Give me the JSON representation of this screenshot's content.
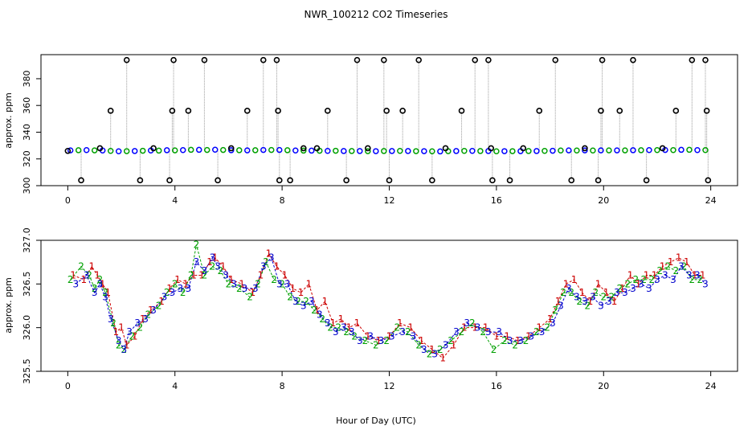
{
  "chart_data": [
    {
      "type": "scatter",
      "title": "NWR_100212  CO2 Timeseries",
      "xlabel": "",
      "ylabel": "approx. ppm",
      "xlim": [
        -1,
        25
      ],
      "ylim": [
        300,
        398
      ],
      "xticks": [
        0,
        4,
        8,
        12,
        16,
        20,
        24
      ],
      "yticks": [
        300,
        320,
        340,
        360,
        380
      ],
      "x_tick_labels": [
        "0",
        "4",
        "8",
        "12",
        "16",
        "20",
        "24"
      ],
      "y_tick_labels": [
        "300",
        "320",
        "340",
        "360",
        "380"
      ],
      "baseline_series": [
        {
          "name": "blue",
          "color": "#0000ff",
          "x": [
            0.1,
            0.7,
            1.3,
            1.9,
            2.5,
            3.1,
            3.7,
            4.3,
            4.9,
            5.5,
            6.1,
            6.7,
            7.3,
            7.9,
            8.5,
            9.1,
            9.7,
            10.3,
            10.9,
            11.5,
            12.1,
            12.7,
            13.3,
            13.9,
            14.5,
            15.1,
            15.7,
            16.3,
            16.9,
            17.5,
            18.1,
            18.7,
            19.3,
            19.9,
            20.5,
            21.1,
            21.7,
            22.3,
            22.9,
            23.5
          ],
          "y": [
            326.4,
            326.6,
            326.3,
            325.7,
            325.9,
            326.3,
            326.5,
            326.6,
            326.8,
            326.9,
            326.5,
            326.4,
            326.7,
            326.7,
            326.3,
            326.2,
            326.0,
            325.9,
            325.9,
            325.8,
            325.9,
            325.9,
            325.8,
            325.6,
            325.9,
            326.0,
            325.9,
            325.8,
            325.8,
            325.9,
            326.1,
            326.4,
            326.4,
            326.4,
            326.4,
            326.5,
            326.6,
            326.7,
            326.8,
            326.6
          ]
        },
        {
          "name": "green",
          "color": "#00a000",
          "x": [
            0.4,
            1.0,
            1.6,
            2.2,
            2.8,
            3.4,
            4.0,
            4.6,
            5.2,
            5.8,
            6.4,
            7.0,
            7.6,
            8.2,
            8.8,
            9.4,
            10.0,
            10.6,
            11.2,
            11.8,
            12.4,
            13.0,
            13.6,
            14.2,
            14.8,
            15.4,
            16.0,
            16.6,
            17.2,
            17.8,
            18.4,
            19.0,
            19.6,
            20.2,
            20.8,
            21.4,
            22.0,
            22.6,
            23.2,
            23.8
          ],
          "y": [
            326.5,
            326.4,
            326.0,
            325.8,
            326.1,
            326.2,
            326.4,
            326.8,
            326.7,
            326.7,
            326.5,
            326.5,
            326.7,
            326.5,
            326.2,
            326.1,
            326.1,
            325.9,
            325.8,
            325.9,
            326.0,
            325.8,
            325.7,
            325.8,
            326.0,
            325.9,
            325.7,
            325.8,
            325.9,
            326.0,
            326.3,
            326.3,
            326.3,
            326.4,
            326.4,
            326.5,
            326.6,
            326.6,
            326.8,
            326.6
          ]
        }
      ],
      "spike_points": {
        "color": "#000000",
        "x": [
          0.0,
          0.5,
          1.2,
          1.6,
          2.2,
          2.7,
          3.2,
          3.8,
          3.9,
          3.95,
          4.5,
          5.1,
          5.6,
          6.1,
          6.7,
          7.3,
          7.8,
          7.85,
          7.9,
          8.3,
          8.8,
          9.3,
          9.7,
          10.4,
          10.8,
          11.2,
          11.8,
          11.9,
          12.0,
          12.5,
          13.1,
          13.6,
          14.1,
          14.7,
          15.2,
          15.7,
          15.8,
          15.85,
          16.5,
          17.0,
          17.6,
          18.2,
          18.8,
          19.3,
          19.8,
          19.9,
          19.95,
          20.6,
          21.1,
          21.6,
          22.2,
          22.7,
          23.3,
          23.8,
          23.85,
          23.9
        ],
        "y": [
          326,
          304,
          328,
          356,
          394,
          304,
          328,
          304,
          356,
          394,
          356,
          394,
          304,
          328,
          356,
          394,
          394,
          356,
          304,
          304,
          328,
          328,
          356,
          304,
          394,
          328,
          394,
          356,
          304,
          356,
          394,
          304,
          328,
          356,
          394,
          394,
          328,
          304,
          304,
          328,
          356,
          394,
          304,
          328,
          304,
          356,
          394,
          356,
          394,
          304,
          328,
          356,
          394,
          394,
          356,
          304
        ]
      }
    },
    {
      "type": "line",
      "title": "",
      "xlabel": "Hour of Day (UTC)",
      "ylabel": "approx. ppm",
      "xlim": [
        -1,
        25
      ],
      "ylim": [
        325.5,
        327.0
      ],
      "xticks": [
        0,
        4,
        8,
        12,
        16,
        20,
        24
      ],
      "yticks": [
        325.5,
        326.0,
        326.5,
        327.0
      ],
      "x_tick_labels": [
        "0",
        "4",
        "8",
        "12",
        "16",
        "20",
        "24"
      ],
      "y_tick_labels": [
        "325.5",
        "326.0",
        "326.5",
        "327.0"
      ],
      "series": [
        {
          "name": "1",
          "color": "#cc0000",
          "x": [
            0.2,
            0.6,
            0.9,
            1.1,
            1.3,
            1.5,
            1.8,
            2.0,
            2.2,
            2.5,
            2.8,
            3.1,
            3.5,
            3.8,
            4.1,
            4.4,
            4.7,
            5.0,
            5.3,
            5.5,
            5.8,
            6.1,
            6.5,
            6.9,
            7.2,
            7.5,
            7.8,
            8.1,
            8.4,
            8.7,
            9.0,
            9.3,
            9.6,
            9.9,
            10.2,
            10.5,
            10.8,
            11.2,
            11.6,
            12.0,
            12.4,
            12.8,
            13.2,
            13.6,
            14.0,
            14.4,
            14.8,
            15.2,
            15.6,
            16.0,
            16.4,
            16.8,
            17.2,
            17.6,
            18.0,
            18.3,
            18.6,
            18.9,
            19.2,
            19.5,
            19.8,
            20.1,
            20.4,
            20.7,
            21.0,
            21.3,
            21.6,
            21.9,
            22.2,
            22.5,
            22.8,
            23.1,
            23.4,
            23.7
          ],
          "y": [
            326.6,
            326.55,
            326.7,
            326.6,
            326.5,
            326.4,
            325.95,
            326.0,
            325.8,
            325.9,
            326.1,
            326.2,
            326.3,
            326.45,
            326.55,
            326.5,
            326.6,
            326.6,
            326.75,
            326.8,
            326.7,
            326.55,
            326.5,
            326.4,
            326.6,
            326.85,
            326.7,
            326.6,
            326.45,
            326.4,
            326.5,
            326.2,
            326.3,
            326.05,
            326.1,
            326.0,
            326.05,
            325.9,
            325.85,
            325.9,
            326.05,
            326.0,
            325.85,
            325.75,
            325.65,
            325.8,
            326.0,
            326.0,
            326.0,
            325.9,
            325.9,
            325.85,
            325.9,
            326.0,
            326.1,
            326.3,
            326.5,
            326.55,
            326.4,
            326.3,
            326.5,
            326.4,
            326.3,
            326.45,
            326.6,
            326.5,
            326.6,
            326.6,
            326.7,
            326.75,
            326.8,
            326.75,
            326.6,
            326.6
          ]
        },
        {
          "name": "2",
          "color": "#00a000",
          "x": [
            0.1,
            0.5,
            0.8,
            1.0,
            1.2,
            1.4,
            1.7,
            1.9,
            2.1,
            2.4,
            2.7,
            3.0,
            3.4,
            3.7,
            4.0,
            4.3,
            4.6,
            4.8,
            5.1,
            5.4,
            5.7,
            6.0,
            6.4,
            6.8,
            7.1,
            7.4,
            7.7,
            8.0,
            8.3,
            8.6,
            8.9,
            9.2,
            9.5,
            9.8,
            10.1,
            10.4,
            10.7,
            11.1,
            11.5,
            11.9,
            12.3,
            12.7,
            13.1,
            13.5,
            13.9,
            14.3,
            14.7,
            15.1,
            15.5,
            15.9,
            16.3,
            16.7,
            17.1,
            17.5,
            17.9,
            18.2,
            18.5,
            18.8,
            19.1,
            19.4,
            19.7,
            20.0,
            20.3,
            20.6,
            20.9,
            21.2,
            21.5,
            21.8,
            22.1,
            22.4,
            22.7,
            23.0,
            23.3,
            23.6
          ],
          "y": [
            326.55,
            326.7,
            326.6,
            326.45,
            326.55,
            326.4,
            326.05,
            325.8,
            325.75,
            325.9,
            326.0,
            326.15,
            326.25,
            326.4,
            326.5,
            326.4,
            326.6,
            326.95,
            326.6,
            326.7,
            326.65,
            326.5,
            326.45,
            326.35,
            326.5,
            326.75,
            326.55,
            326.5,
            326.35,
            326.3,
            326.3,
            326.2,
            326.1,
            326.0,
            326.0,
            325.95,
            325.9,
            325.85,
            325.8,
            325.85,
            326.0,
            325.95,
            325.8,
            325.7,
            325.75,
            325.85,
            325.95,
            326.05,
            325.95,
            325.75,
            325.85,
            325.8,
            325.85,
            325.95,
            326.0,
            326.2,
            326.4,
            326.4,
            326.3,
            326.25,
            326.4,
            326.35,
            326.35,
            326.45,
            326.5,
            326.55,
            326.55,
            326.55,
            326.65,
            326.7,
            326.65,
            326.7,
            326.55,
            326.55
          ]
        },
        {
          "name": "3",
          "color": "#0000cc",
          "x": [
            0.3,
            0.7,
            1.0,
            1.2,
            1.4,
            1.6,
            1.9,
            2.1,
            2.3,
            2.6,
            2.9,
            3.2,
            3.6,
            3.9,
            4.2,
            4.5,
            4.8,
            5.1,
            5.4,
            5.6,
            5.9,
            6.2,
            6.6,
            7.0,
            7.3,
            7.6,
            7.9,
            8.2,
            8.5,
            8.8,
            9.1,
            9.4,
            9.7,
            10.0,
            10.3,
            10.6,
            10.9,
            11.3,
            11.7,
            12.1,
            12.5,
            12.9,
            13.3,
            13.7,
            14.1,
            14.5,
            14.9,
            15.3,
            15.7,
            16.1,
            16.5,
            16.9,
            17.3,
            17.7,
            18.1,
            18.4,
            18.7,
            19.0,
            19.3,
            19.6,
            19.9,
            20.2,
            20.5,
            20.8,
            21.1,
            21.4,
            21.7,
            22.0,
            22.3,
            22.6,
            22.9,
            23.2,
            23.5,
            23.8
          ],
          "y": [
            326.5,
            326.6,
            326.4,
            326.5,
            326.35,
            326.1,
            325.85,
            325.75,
            325.95,
            326.05,
            326.1,
            326.2,
            326.35,
            326.4,
            326.45,
            326.45,
            326.75,
            326.65,
            326.8,
            326.7,
            326.6,
            326.5,
            326.45,
            326.45,
            326.7,
            326.8,
            326.5,
            326.5,
            326.3,
            326.25,
            326.3,
            326.15,
            326.05,
            325.95,
            326.0,
            325.95,
            325.85,
            325.9,
            325.85,
            325.9,
            325.95,
            325.9,
            325.75,
            325.7,
            325.8,
            325.95,
            326.05,
            326.0,
            325.95,
            325.95,
            325.85,
            325.85,
            325.9,
            325.95,
            326.05,
            326.25,
            326.45,
            326.35,
            326.3,
            326.35,
            326.25,
            326.3,
            326.4,
            326.4,
            326.45,
            326.5,
            326.45,
            326.55,
            326.6,
            326.55,
            326.7,
            326.6,
            326.6,
            326.5
          ]
        }
      ]
    }
  ]
}
